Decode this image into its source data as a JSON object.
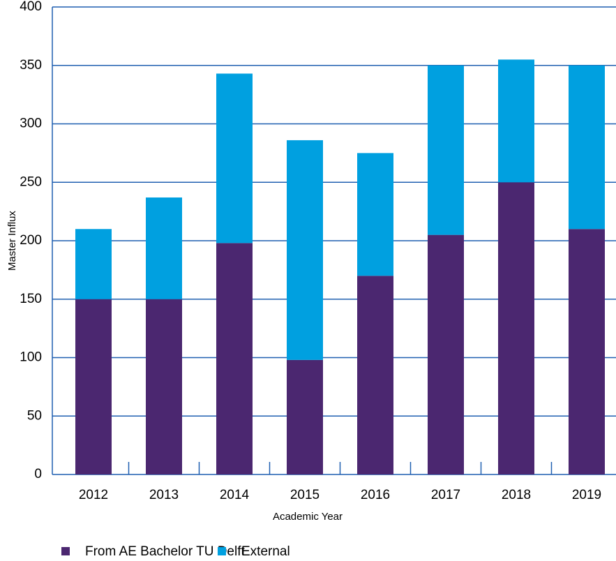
{
  "chart_data": {
    "type": "stacked_bar",
    "x_label": "Academic Year",
    "y_label": "Master Influx",
    "categories": [
      "2012",
      "2013",
      "2014",
      "2015",
      "2016",
      "2017",
      "2018",
      "2019"
    ],
    "series": [
      {
        "name": "From AE Bachelor TU Delft",
        "color": "#4b2770",
        "values": [
          150,
          150,
          198,
          98,
          170,
          205,
          250,
          210
        ]
      },
      {
        "name": "External",
        "color": "#00a0e0",
        "values": [
          60,
          87,
          145,
          188,
          105,
          145,
          105,
          140
        ]
      }
    ],
    "ylim": [
      0,
      400
    ],
    "yticks": [
      0,
      50,
      100,
      150,
      200,
      250,
      300,
      350,
      400
    ],
    "grid": true
  }
}
